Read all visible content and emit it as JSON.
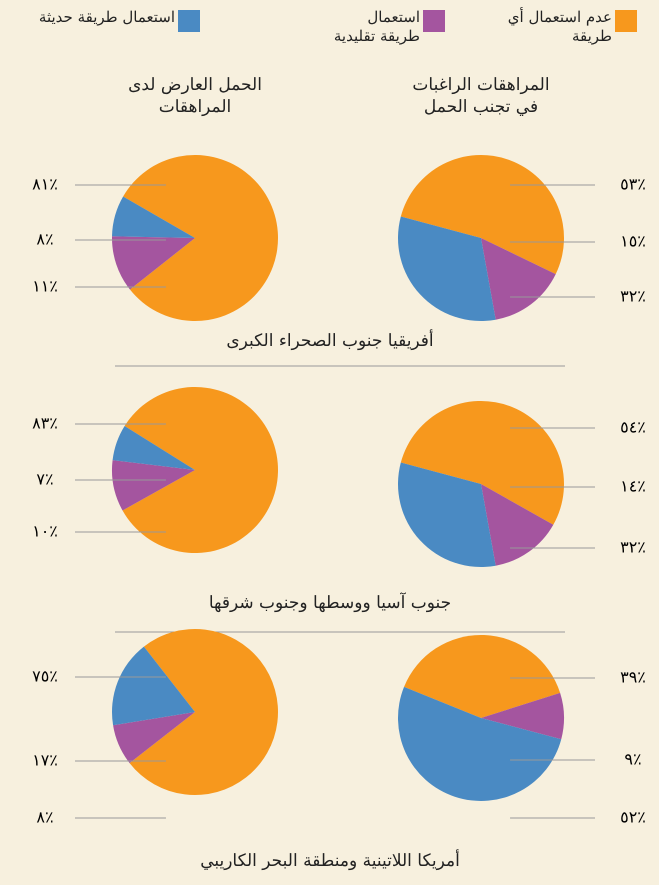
{
  "legend": [
    {
      "name": "عدم استعمال أي طريقة",
      "color": "#f7981d"
    },
    {
      "name": "استعمال طريقة تقليدية",
      "color": "#a4559f"
    },
    {
      "name": "استعمال طريقة حديثة",
      "color": "#4a8ac3"
    }
  ],
  "columns": [
    "المراهقات الراغبات في تجنب الحمل",
    "الحمل العارض لدى المراهقات"
  ],
  "regions": [
    "أفريقيا جنوب الصحراء الكبرى",
    "جنوب آسيا ووسطها وجنوب شرقها",
    "أمريكا اللاتينية ومنطقة البحر الكاريبي"
  ],
  "chart_data": [
    {
      "type": "pie",
      "values": [
        53,
        15,
        32
      ],
      "value_labels": [
        "٪٥٣",
        "٪١٥",
        "٪٣٢"
      ]
    },
    {
      "type": "pie",
      "values": [
        81,
        11,
        8
      ],
      "value_labels": [
        "٪٨١",
        "٪١١",
        "٪٨"
      ]
    },
    {
      "type": "pie",
      "values": [
        54,
        14,
        32
      ],
      "value_labels": [
        "٪٥٤",
        "٪١٤",
        "٪٣٢"
      ]
    },
    {
      "type": "pie",
      "values": [
        83,
        10,
        7
      ],
      "value_labels": [
        "٪٨٣",
        "٪١٠",
        "٪٧"
      ]
    },
    {
      "type": "pie",
      "values": [
        39,
        9,
        52
      ],
      "value_labels": [
        "٪٣٩",
        "٪٩",
        "٪٥٢"
      ]
    },
    {
      "type": "pie",
      "values": [
        75,
        8,
        17
      ],
      "value_labels": [
        "٪٧٥",
        "٪٨",
        "٪١٧"
      ]
    }
  ]
}
